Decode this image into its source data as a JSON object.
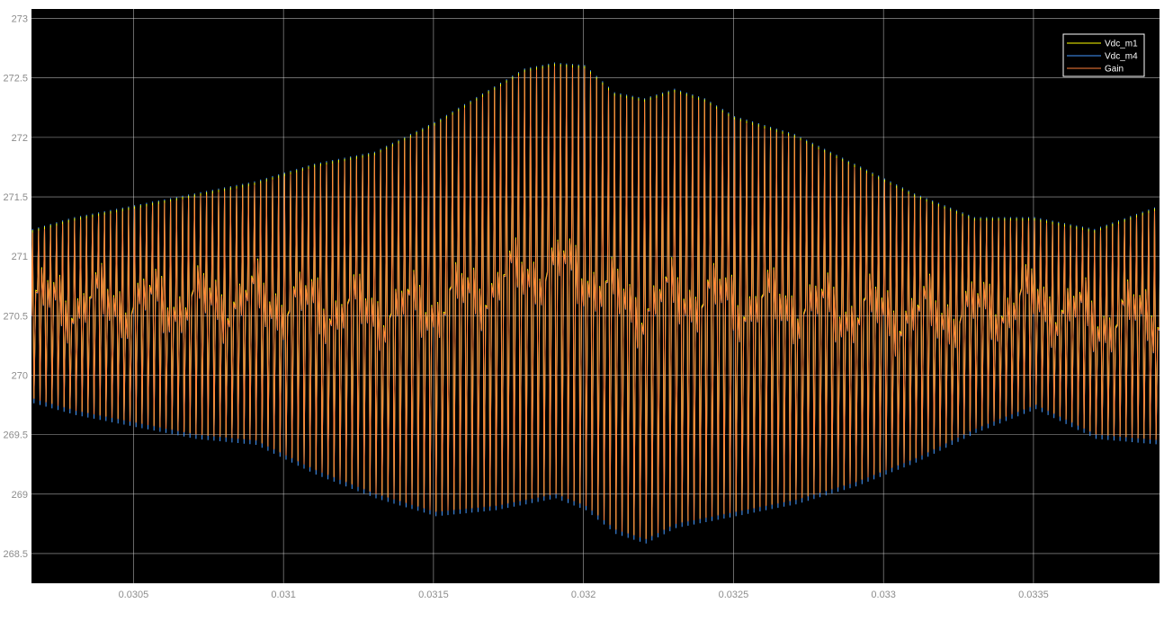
{
  "chart_data": {
    "type": "line",
    "title": "",
    "xlabel": "",
    "ylabel": "",
    "xlim": [
      0.03016,
      0.03392
    ],
    "ylim": [
      268.25,
      273.08
    ],
    "x_ticks": [
      "0.0305",
      "0.031",
      "0.0315",
      "0.032",
      "0.0325",
      "0.033",
      "0.0335"
    ],
    "x_tick_values": [
      0.0305,
      0.031,
      0.0315,
      0.032,
      0.0325,
      0.033,
      0.0335
    ],
    "y_ticks": [
      "273",
      "272.5",
      "272",
      "271.5",
      "271",
      "270.5",
      "270",
      "269.5",
      "269",
      "268.5"
    ],
    "y_tick_values": [
      273,
      272.5,
      272,
      271.5,
      271,
      270.5,
      270,
      269.5,
      269,
      268.5
    ],
    "grid": true,
    "legend_position": "top-right",
    "background": "#000000",
    "grid_color": "#e6e6e6",
    "series": [
      {
        "name": "Vdc_m1",
        "color": "#ffff00"
      },
      {
        "name": "Vdc_m4",
        "color": "#4499ff"
      },
      {
        "name": "Gain",
        "color": "#ff7f3a"
      }
    ],
    "signal": {
      "period": 2e-05,
      "mean": 270.4,
      "envelope_x": [
        0.03016,
        0.0303,
        0.0305,
        0.0307,
        0.0309,
        0.0311,
        0.0313,
        0.0315,
        0.0317,
        0.0318,
        0.0319,
        0.032,
        0.0321,
        0.0322,
        0.0323,
        0.0324,
        0.0325,
        0.0327,
        0.0329,
        0.0331,
        0.0333,
        0.0335,
        0.0337,
        0.03392
      ],
      "envelope_max": [
        271.2,
        271.3,
        271.4,
        271.5,
        271.6,
        271.75,
        271.85,
        272.1,
        272.4,
        272.55,
        272.6,
        272.58,
        272.35,
        272.3,
        272.38,
        272.3,
        272.15,
        272.0,
        271.75,
        271.5,
        271.3,
        271.3,
        271.2,
        271.4
      ],
      "envelope_min": [
        269.8,
        269.7,
        269.6,
        269.5,
        269.45,
        269.2,
        269.0,
        268.85,
        268.9,
        268.95,
        269.0,
        268.9,
        268.7,
        268.62,
        268.75,
        268.8,
        268.85,
        268.95,
        269.1,
        269.3,
        269.55,
        269.75,
        269.5,
        269.45
      ]
    }
  },
  "legend": {
    "items": [
      "Vdc_m1",
      "Vdc_m4",
      "Gain"
    ]
  }
}
